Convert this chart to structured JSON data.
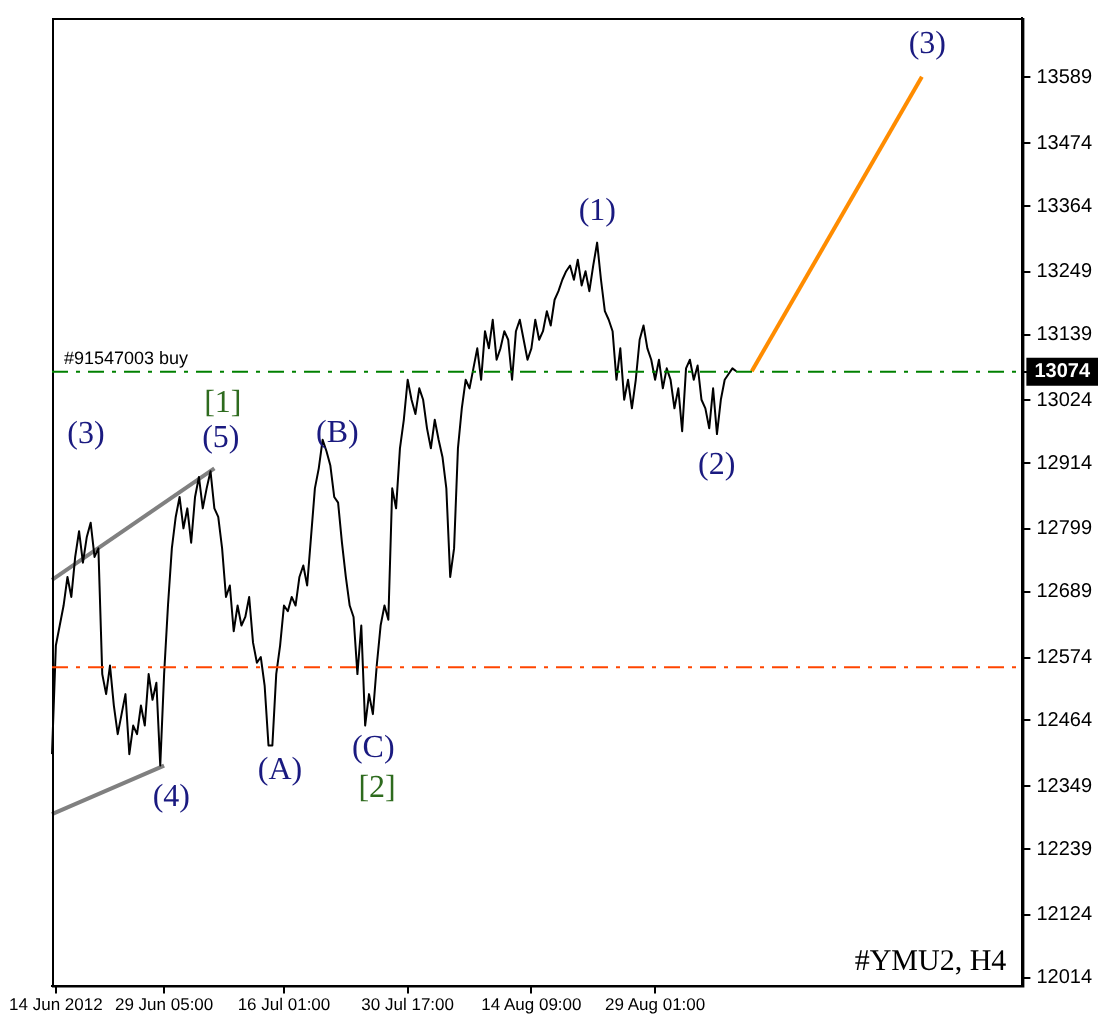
{
  "chart_data": {
    "type": "line",
    "categories": [
      null,
      "14 Jun 2012",
      null,
      null,
      null,
      null,
      null,
      null,
      null,
      null,
      null,
      null,
      null,
      null,
      null,
      null,
      null,
      null,
      null,
      null,
      null,
      null,
      null,
      null,
      null,
      null,
      null,
      null,
      null,
      "29 Jun 05:00",
      null,
      null,
      null,
      null,
      null,
      null,
      null,
      null,
      null,
      null,
      null,
      null,
      null,
      null,
      null,
      null,
      null,
      null,
      null,
      null,
      null,
      null,
      null,
      null,
      null,
      null,
      null,
      null,
      null,
      null,
      "16 Jul 01:00",
      null,
      null,
      null,
      null,
      null,
      null,
      null,
      null,
      null,
      null,
      null,
      null,
      null,
      null,
      null,
      null,
      null,
      null,
      null,
      null,
      null,
      null,
      null,
      null,
      null,
      null,
      null,
      null,
      null,
      null,
      null,
      "30 Jul 17:00",
      null,
      null,
      null,
      null,
      null,
      null,
      null,
      null,
      null,
      null,
      null,
      null,
      null,
      null,
      null,
      null,
      null,
      null,
      null,
      null,
      null,
      null,
      null,
      null,
      null,
      null,
      null,
      null,
      null,
      null,
      null,
      "14 Aug 09:00",
      null,
      null,
      null,
      null,
      null,
      null,
      null,
      null,
      null,
      null,
      null,
      null,
      null,
      null,
      null,
      null,
      null,
      null,
      null,
      null,
      null,
      null,
      null,
      null,
      null,
      null,
      null,
      null,
      null,
      null,
      null,
      "29 Aug 01:00",
      null,
      null,
      null,
      null,
      null,
      null,
      null,
      null,
      null,
      null,
      null,
      null,
      null,
      null,
      null,
      null,
      null,
      null,
      null,
      null,
      null,
      null,
      null,
      null,
      null,
      null,
      null,
      null,
      null,
      null,
      null,
      null,
      null,
      null,
      null,
      null,
      null,
      null,
      null,
      null,
      null,
      null,
      null,
      null,
      null,
      null,
      null,
      null,
      null,
      null,
      null,
      null,
      null,
      null,
      null,
      null,
      null,
      null,
      null,
      null,
      null,
      null,
      null,
      null,
      null,
      null,
      null,
      null,
      null,
      null,
      null,
      null,
      null,
      null,
      null,
      null,
      null,
      null,
      null,
      null,
      null,
      null,
      null,
      null,
      null,
      null,
      null,
      null,
      null,
      null,
      null,
      null,
      null,
      null,
      null
    ],
    "series": [
      {
        "color": "#000000",
        "values": [
          12405,
          12595,
          12630,
          12665,
          12715,
          12680,
          12750,
          12795,
          12740,
          12785,
          12810,
          12750,
          12765,
          12545,
          12510,
          12560,
          12490,
          12440,
          12475,
          12510,
          12405,
          12455,
          12440,
          12490,
          12455,
          12545,
          12500,
          12530,
          12385,
          12545,
          12665,
          12765,
          12820,
          12855,
          12800,
          12835,
          12775,
          12855,
          12890,
          12835,
          12870,
          12900,
          12835,
          12820,
          12765,
          12680,
          12700,
          12620,
          12665,
          12630,
          12645,
          12680,
          12600,
          12565,
          12575,
          12525,
          12420,
          12420,
          12545,
          12595,
          12665,
          12655,
          12680,
          12665,
          12715,
          12735,
          12700,
          12785,
          12870,
          12905,
          12955,
          12935,
          12910,
          12855,
          12845,
          12775,
          12715,
          12665,
          12645,
          12545,
          12630,
          12455,
          12510,
          12475,
          12560,
          12630,
          12665,
          12640,
          12870,
          12835,
          12940,
          12990,
          13060,
          13025,
          13000,
          13045,
          13025,
          12975,
          12940,
          12990,
          12955,
          12925,
          12870,
          12715,
          12765,
          12940,
          13010,
          13060,
          13045,
          13080,
          13115,
          13060,
          13145,
          13115,
          13165,
          13095,
          13115,
          13145,
          13130,
          13060,
          13145,
          13165,
          13130,
          13095,
          13115,
          13165,
          13130,
          13145,
          13180,
          13155,
          13200,
          13215,
          13235,
          13250,
          13260,
          13235,
          13270,
          13225,
          13250,
          13215,
          13260,
          13300,
          13235,
          13180,
          13165,
          13145,
          13060,
          13115,
          13025,
          13060,
          13010,
          13060,
          13130,
          13155,
          13115,
          13095,
          13060,
          13095,
          13045,
          13080,
          13060,
          13010,
          13045,
          12970,
          13080,
          13095,
          13060,
          13085,
          13025,
          13010,
          12975,
          13045,
          12965,
          13025,
          13060,
          13070,
          13080,
          13075,
          null,
          null,
          null,
          null,
          null,
          null,
          null,
          null,
          null,
          null,
          null,
          null,
          null,
          null,
          null,
          null,
          null,
          null,
          null,
          null,
          null,
          null,
          null,
          null,
          null,
          null,
          null,
          null,
          null,
          null,
          null,
          null,
          null,
          null,
          null,
          null,
          null,
          null,
          null,
          null,
          null,
          null,
          null,
          null,
          null,
          null,
          null,
          null,
          null,
          null,
          null,
          null,
          null,
          null,
          null,
          null,
          null,
          null,
          null,
          null,
          null,
          null,
          null,
          null,
          null,
          null,
          null,
          null,
          null,
          null,
          null,
          null,
          null,
          null
        ]
      },
      {
        "color": "#808080",
        "values": [
          12710,
          null,
          null,
          null,
          null,
          null,
          null,
          null,
          null,
          null,
          null,
          null,
          null,
          null,
          null,
          null,
          null,
          null,
          null,
          null,
          null,
          null,
          null,
          null,
          null,
          null,
          null,
          null,
          null,
          null,
          null,
          null,
          null,
          null,
          null,
          null,
          null,
          null,
          null,
          null,
          null,
          null,
          12905,
          null,
          null,
          null,
          null,
          null,
          null,
          null,
          null,
          null,
          null,
          null,
          null,
          null,
          null,
          null,
          null,
          null,
          null,
          null,
          null,
          null,
          null,
          null,
          null,
          null,
          null,
          null,
          null,
          null,
          null,
          null,
          null,
          null,
          null,
          null,
          null,
          null,
          null,
          null,
          null,
          null,
          null,
          null,
          null,
          null,
          null,
          null,
          null,
          null,
          null,
          null,
          null,
          null,
          null,
          null,
          null,
          null,
          null,
          null,
          null,
          null,
          null,
          null,
          null,
          null,
          null,
          null,
          null,
          null,
          null,
          null,
          null,
          null,
          null,
          null,
          null,
          null,
          null,
          null,
          null,
          null,
          null,
          null,
          null,
          null,
          null,
          null,
          null,
          null,
          null,
          null,
          null,
          null,
          null,
          null,
          null,
          null,
          null,
          null,
          null,
          null,
          null,
          null,
          null,
          null,
          null,
          null,
          null,
          null,
          null,
          null,
          null,
          null,
          null,
          null,
          null,
          null,
          null,
          null,
          null,
          null,
          null,
          null,
          null,
          null,
          null,
          null,
          null,
          null,
          null,
          null,
          null,
          null,
          null,
          null,
          null,
          null,
          null,
          null,
          null,
          null,
          null,
          null,
          null,
          null,
          null,
          null,
          null,
          null,
          null,
          null,
          null,
          null,
          null,
          null,
          null,
          null,
          null,
          null,
          null,
          null,
          null,
          null,
          null,
          null,
          null,
          null,
          null,
          null,
          null,
          null,
          null,
          null,
          null,
          null,
          null,
          null,
          null,
          null,
          null,
          null,
          null,
          null,
          null,
          null,
          null,
          null,
          null,
          null,
          null,
          null,
          null,
          null,
          null,
          null,
          null,
          null,
          null,
          null,
          null,
          null,
          null,
          null,
          null,
          null,
          null,
          null,
          null,
          null
        ]
      },
      {
        "color": "#808080",
        "values": [
          12300,
          null,
          null,
          null,
          null,
          null,
          null,
          null,
          null,
          null,
          null,
          null,
          null,
          null,
          null,
          null,
          null,
          null,
          null,
          null,
          null,
          null,
          null,
          null,
          null,
          null,
          null,
          null,
          null,
          12385,
          null,
          null,
          null,
          null,
          null,
          null,
          null,
          null,
          null,
          null,
          null,
          null,
          null,
          null,
          null,
          null,
          null,
          null,
          null,
          null,
          null,
          null,
          null,
          null,
          null,
          null,
          null,
          null,
          null,
          null,
          null,
          null,
          null,
          null,
          null,
          null,
          null,
          null,
          null,
          null,
          null,
          null,
          null,
          null,
          null,
          null,
          null,
          null,
          null,
          null,
          null,
          null,
          null,
          null,
          null,
          null,
          null,
          null,
          null,
          null,
          null,
          null,
          null,
          null,
          null,
          null,
          null,
          null,
          null,
          null,
          null,
          null,
          null,
          null,
          null,
          null,
          null,
          null,
          null,
          null,
          null,
          null,
          null,
          null,
          null,
          null,
          null,
          null,
          null,
          null,
          null,
          null,
          null,
          null,
          null,
          null,
          null,
          null,
          null,
          null,
          null,
          null,
          null,
          null,
          null,
          null,
          null,
          null,
          null,
          null,
          null,
          null,
          null,
          null,
          null,
          null,
          null,
          null,
          null,
          null,
          null,
          null,
          null,
          null,
          null,
          null,
          null,
          null,
          null,
          null,
          null,
          null,
          null,
          null,
          null,
          null,
          null,
          null,
          null,
          null,
          null,
          null,
          null,
          null,
          null,
          null,
          null,
          null,
          null,
          null,
          null,
          null,
          null,
          null,
          null,
          null,
          null,
          null,
          null,
          null,
          null,
          null,
          null,
          null,
          null,
          null,
          null,
          null,
          null,
          null,
          null,
          null,
          null,
          null,
          null,
          null,
          null,
          null,
          null,
          null,
          null,
          null,
          null,
          null,
          null,
          null,
          null,
          null,
          null,
          null,
          null,
          null,
          null,
          null,
          null,
          null,
          null,
          null,
          null,
          null,
          null,
          null,
          null,
          null,
          null,
          null,
          null,
          null,
          null,
          null,
          null,
          null,
          null,
          null,
          null,
          null,
          null,
          null,
          null,
          null,
          null,
          null
        ]
      },
      {
        "color": "#ff8c00",
        "values": [
          null,
          null,
          null,
          null,
          null,
          null,
          null,
          null,
          null,
          null,
          null,
          null,
          null,
          null,
          null,
          null,
          null,
          null,
          null,
          null,
          null,
          null,
          null,
          null,
          null,
          null,
          null,
          null,
          null,
          null,
          null,
          null,
          null,
          null,
          null,
          null,
          null,
          null,
          null,
          null,
          null,
          null,
          null,
          null,
          null,
          null,
          null,
          null,
          null,
          null,
          null,
          null,
          null,
          null,
          null,
          null,
          null,
          null,
          null,
          null,
          null,
          null,
          null,
          null,
          null,
          null,
          null,
          null,
          null,
          null,
          null,
          null,
          null,
          null,
          null,
          null,
          null,
          null,
          null,
          null,
          null,
          null,
          null,
          null,
          null,
          null,
          null,
          null,
          null,
          null,
          null,
          null,
          null,
          null,
          null,
          null,
          null,
          null,
          null,
          null,
          null,
          null,
          null,
          null,
          null,
          null,
          null,
          null,
          null,
          null,
          null,
          null,
          null,
          null,
          null,
          null,
          null,
          null,
          null,
          null,
          null,
          null,
          null,
          null,
          null,
          null,
          null,
          null,
          null,
          null,
          null,
          null,
          null,
          null,
          null,
          null,
          null,
          null,
          null,
          null,
          null,
          null,
          null,
          null,
          null,
          null,
          null,
          null,
          null,
          null,
          null,
          null,
          null,
          null,
          null,
          null,
          null,
          null,
          null,
          null,
          null,
          null,
          null,
          null,
          null,
          null,
          null,
          null,
          null,
          null,
          null,
          null,
          null,
          null,
          null,
          null,
          null,
          null,
          null,
          null,
          null,
          13075,
          null,
          null,
          null,
          null,
          null,
          null,
          null,
          null,
          null,
          null,
          null,
          null,
          null,
          null,
          null,
          null,
          null,
          null,
          null,
          null,
          null,
          null,
          null,
          null,
          null,
          null,
          null,
          null,
          null,
          null,
          null,
          null,
          null,
          null,
          null,
          null,
          null,
          null,
          null,
          null,
          null,
          null,
          null,
          13590,
          null,
          null,
          null,
          null,
          null,
          null,
          null,
          null,
          null,
          null,
          null,
          null,
          null,
          null,
          null,
          null,
          null,
          null,
          null,
          null,
          null,
          null,
          null,
          null,
          null,
          null
        ]
      }
    ],
    "ylim": [
      12000,
      13693
    ],
    "yticks": [
      13589,
      13474,
      13364,
      13249,
      13139,
      13074,
      13024,
      12914,
      12799,
      12689,
      12574,
      12464,
      12349,
      12239,
      12124,
      12014
    ],
    "ref_lines": [
      {
        "axis": "y",
        "value": 13074,
        "label": "#91547003 buy",
        "color": "#008000",
        "line_style": "dashdot"
      },
      {
        "axis": "y",
        "value": 12557,
        "color": "#ff4500",
        "line_style": "dashdot"
      }
    ],
    "annotations": [
      "(3)",
      "(5)",
      "[1]",
      "(4)",
      "(A)",
      "(B)",
      "(C)",
      "[2]",
      "(1)",
      "(2)",
      "(3)",
      "#YMU2, H4"
    ],
    "grid": false,
    "legend": false,
    "marker": "none",
    "line_style": "solid"
  }
}
